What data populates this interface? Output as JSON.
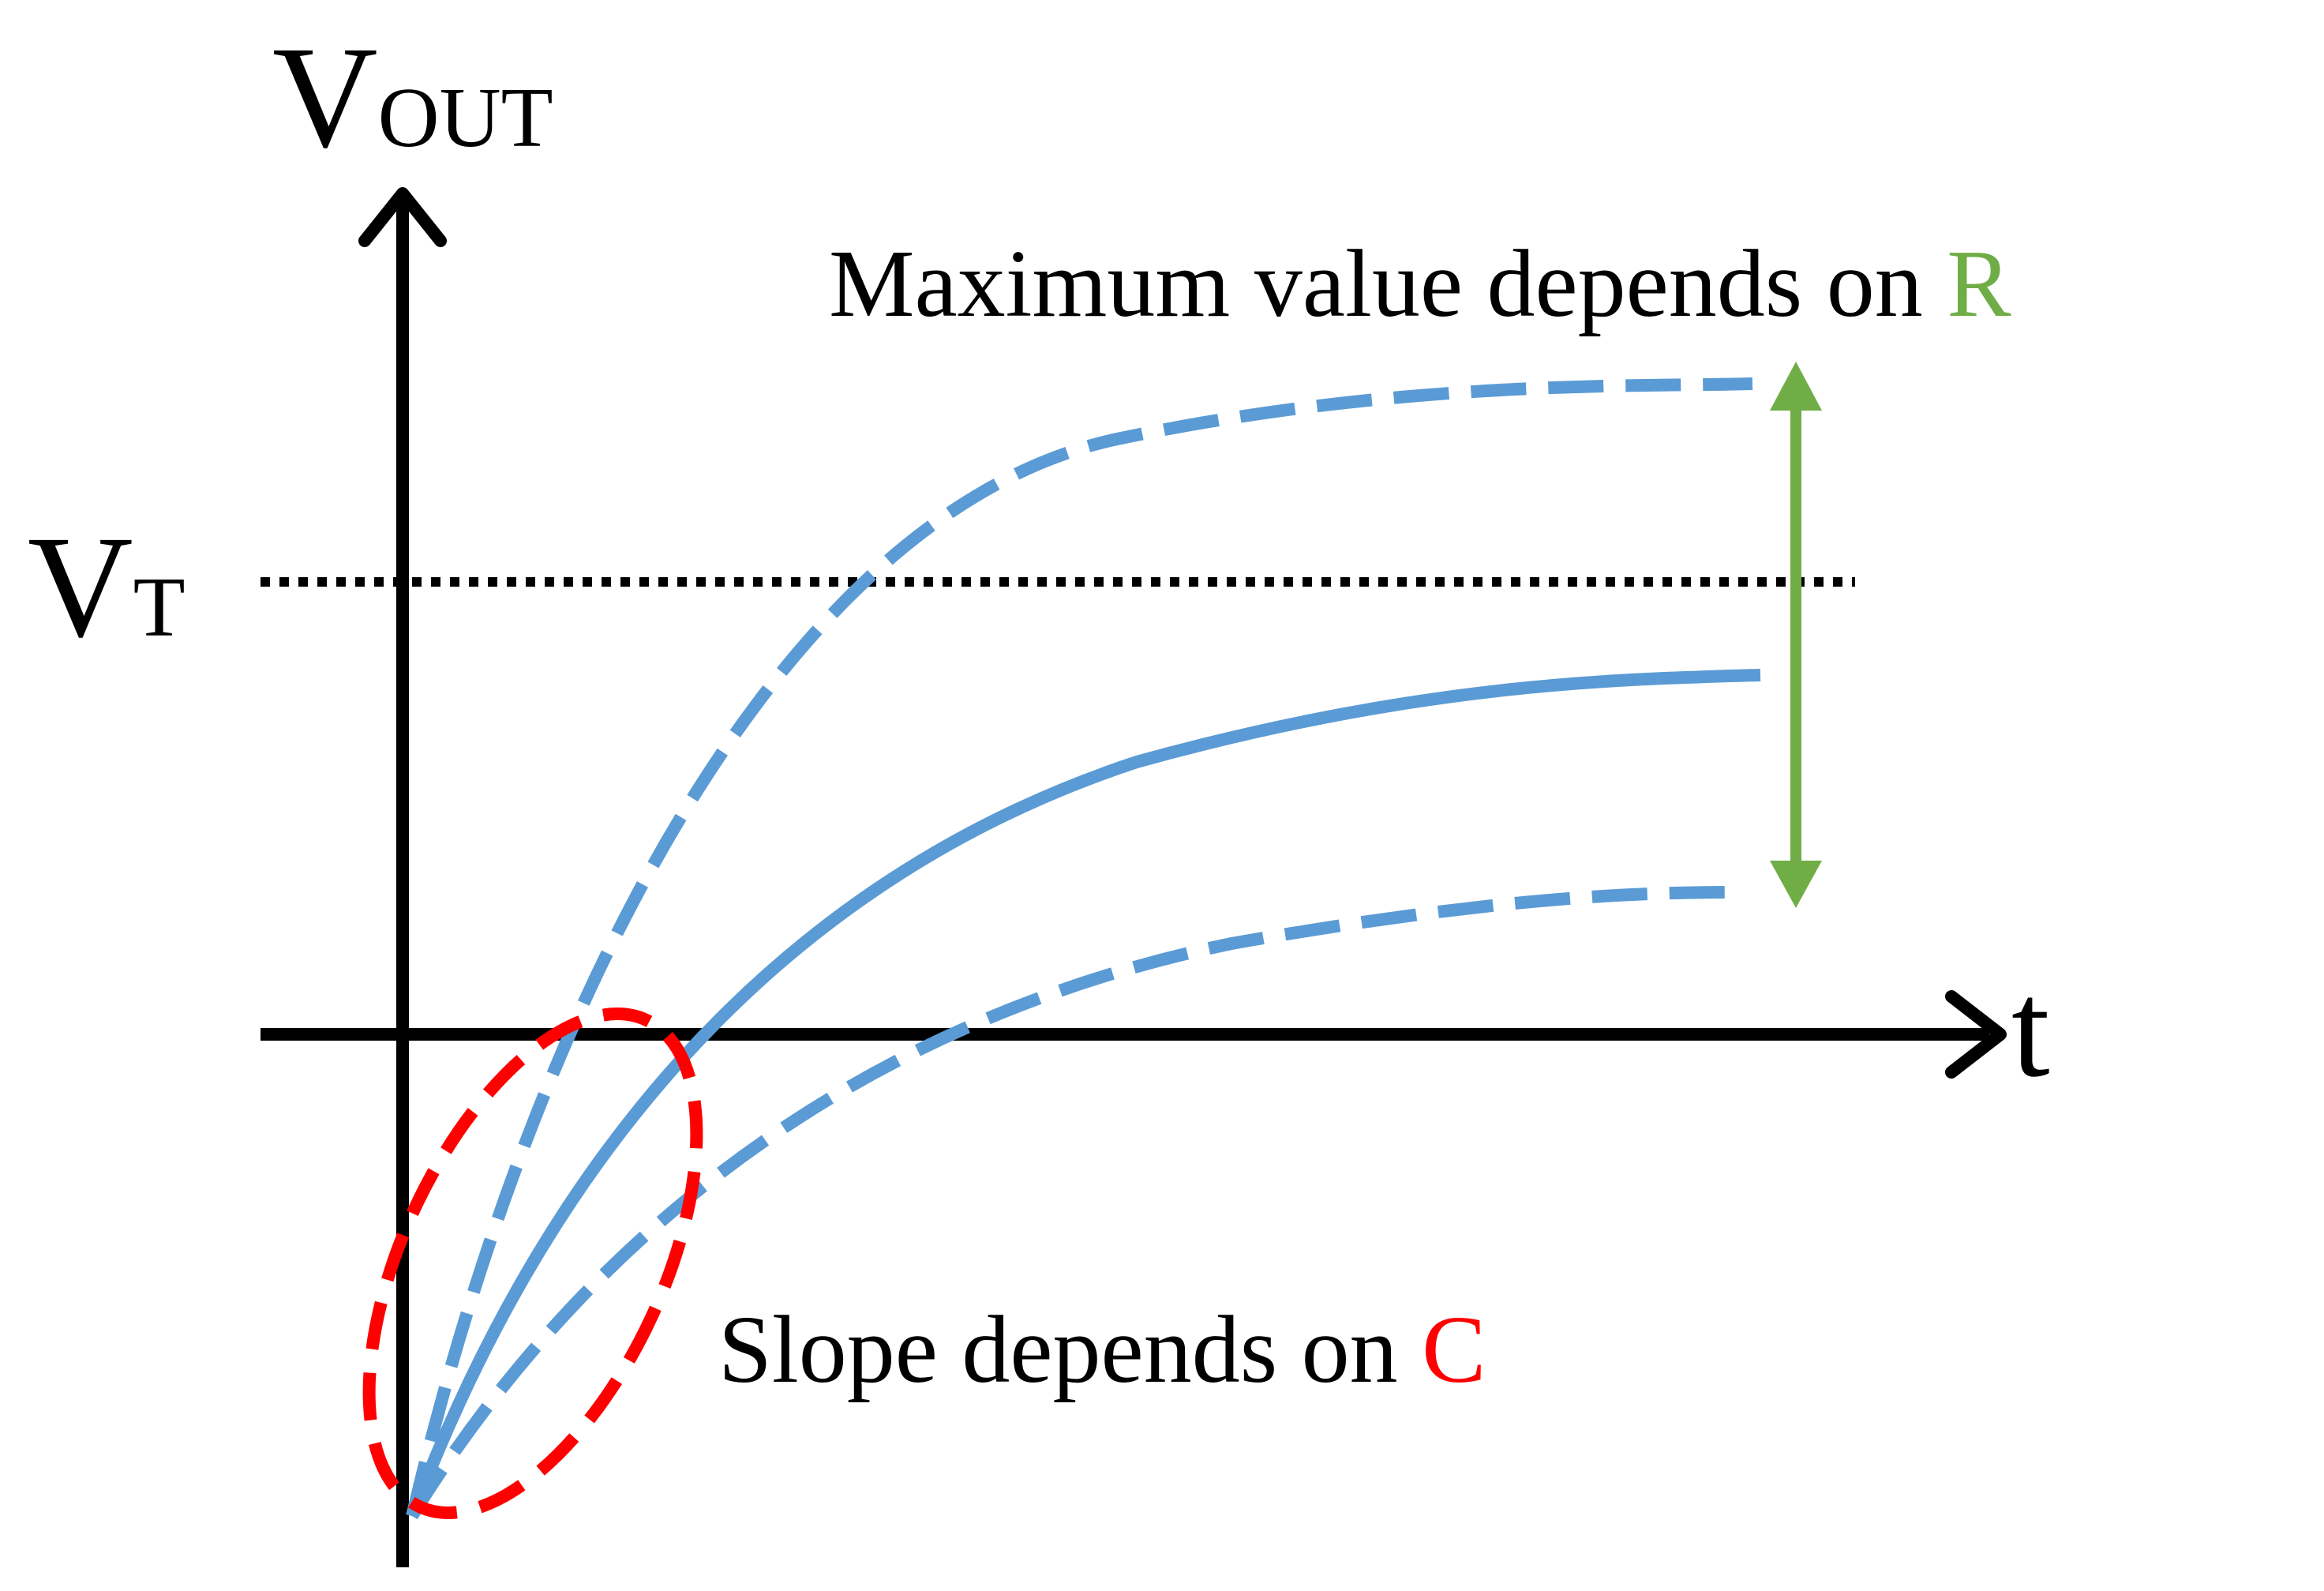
{
  "axes": {
    "y_label_main": "V",
    "y_label_sub": "OUT",
    "x_label": "t",
    "threshold_main": "V",
    "threshold_sub": "T"
  },
  "annotations": {
    "max_value_text": "Maximum value depends on ",
    "max_value_var": "R",
    "slope_text": "Slope depends on ",
    "slope_var": "C"
  },
  "colors": {
    "curve": "#5b9bd5",
    "r_annotation": "#70ad47",
    "c_annotation": "#ff0000",
    "axis": "#000000"
  }
}
